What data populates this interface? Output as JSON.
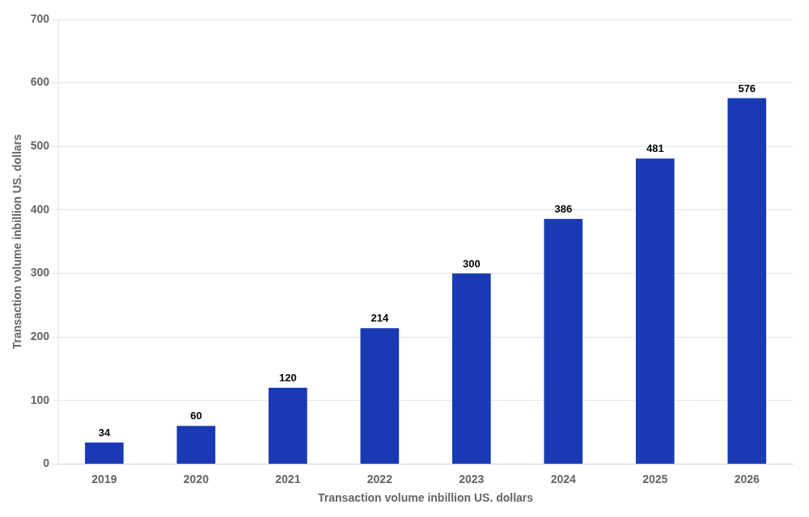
{
  "chart_data": {
    "type": "bar",
    "categories": [
      "2019",
      "2020",
      "2021",
      "2022",
      "2023",
      "2024",
      "2025",
      "2026"
    ],
    "values": [
      34,
      60,
      120,
      214,
      300,
      386,
      481,
      576
    ],
    "color": "#1a3ab5",
    "xlabel": "Transaction volume inbillion US. dollars",
    "ylabel": "Transaction volume inbillion US. dollars",
    "ylim": [
      0,
      700
    ],
    "yticks": [
      0,
      100,
      200,
      300,
      400,
      500,
      600,
      700
    ],
    "grid": true,
    "data_labels": true
  }
}
